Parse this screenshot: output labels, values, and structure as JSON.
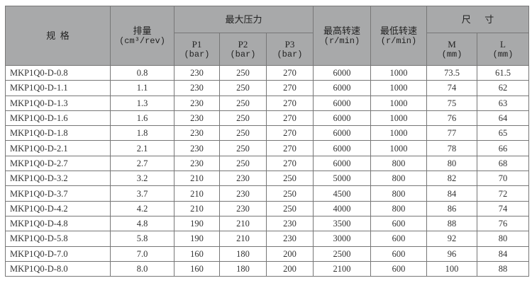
{
  "header": {
    "model": "规  格",
    "displacement": "排量",
    "displacement_unit": "(cm³/rev)",
    "max_pressure": "最大压力",
    "p1": "P1",
    "p2": "P2",
    "p3": "P3",
    "bar_unit": "(bar)",
    "max_speed": "最高转速",
    "min_speed": "最低转速",
    "speed_unit": "(r/min)",
    "dimensions": "尺      寸",
    "m": "M",
    "l": "L",
    "mm_unit": "(mm)"
  },
  "rows": [
    [
      "MKP1Q0-D-0.8",
      "0.8",
      "230",
      "250",
      "270",
      "6000",
      "1000",
      "73.5",
      "61.5"
    ],
    [
      "MKP1Q0-D-1.1",
      "1.1",
      "230",
      "250",
      "270",
      "6000",
      "1000",
      "74",
      "62"
    ],
    [
      "MKP1Q0-D-1.3",
      "1.3",
      "230",
      "250",
      "270",
      "6000",
      "1000",
      "75",
      "63"
    ],
    [
      "MKP1Q0-D-1.6",
      "1.6",
      "230",
      "250",
      "270",
      "6000",
      "1000",
      "76",
      "64"
    ],
    [
      "MKP1Q0-D-1.8",
      "1.8",
      "230",
      "250",
      "270",
      "6000",
      "1000",
      "77",
      "65"
    ],
    [
      "MKP1Q0-D-2.1",
      "2.1",
      "230",
      "250",
      "270",
      "6000",
      "1000",
      "78",
      "66"
    ],
    [
      "MKP1Q0-D-2.7",
      "2.7",
      "230",
      "250",
      "270",
      "6000",
      "800",
      "80",
      "68"
    ],
    [
      "MKP1Q0-D-3.2",
      "3.2",
      "210",
      "230",
      "250",
      "5000",
      "800",
      "82",
      "70"
    ],
    [
      "MKP1Q0-D-3.7",
      "3.7",
      "210",
      "230",
      "250",
      "4500",
      "800",
      "84",
      "72"
    ],
    [
      "MKP1Q0-D-4.2",
      "4.2",
      "210",
      "230",
      "250",
      "4000",
      "800",
      "86",
      "74"
    ],
    [
      "MKP1Q0-D-4.8",
      "4.8",
      "190",
      "210",
      "230",
      "3500",
      "600",
      "88",
      "76"
    ],
    [
      "MKP1Q0-D-5.8",
      "5.8",
      "190",
      "210",
      "230",
      "3000",
      "600",
      "92",
      "80"
    ],
    [
      "MKP1Q0-D-7.0",
      "7.0",
      "160",
      "180",
      "200",
      "2500",
      "600",
      "96",
      "84"
    ],
    [
      "MKP1Q0-D-8.0",
      "8.0",
      "160",
      "180",
      "200",
      "2100",
      "600",
      "100",
      "88"
    ]
  ]
}
